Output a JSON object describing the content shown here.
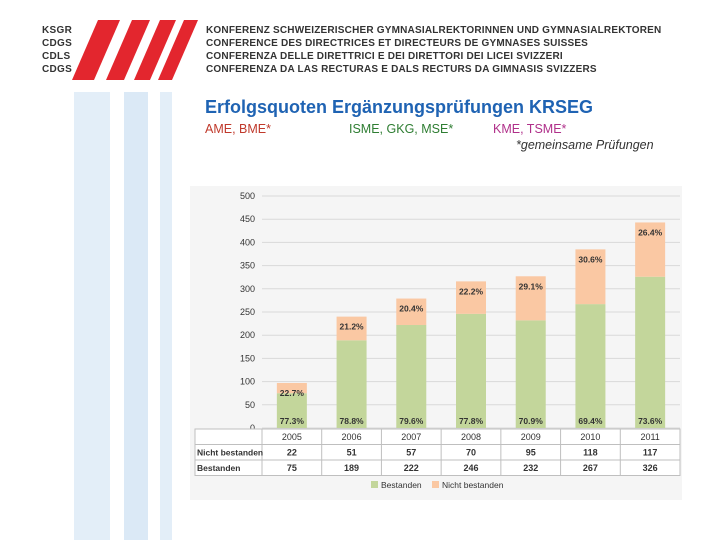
{
  "header": {
    "org_codes": [
      "KSGR",
      "CDGS",
      "CDLS",
      "CDGS"
    ],
    "org_names": [
      "KONFERENZ SCHWEIZERISCHER GYMNASIALREKTORINNEN UND GYMNASIALREKTOREN",
      "CONFERENCE DES DIRECTRICES ET DIRECTEURS DE GYMNASES SUISSES",
      "CONFERENZA DELLE DIRETTRICI E DEI DIRETTORI DEI LICEI SVIZZERI",
      "CONFERENZA DA LAS RECTURAS E DALS RECTURS DA GIMNASIS SVIZZERS"
    ]
  },
  "slide": {
    "title": "Erfolgsquoten Ergänzungsprüfungen KRSEG",
    "groups": [
      "AME, BME*",
      "ISME, GKG, MSE*",
      "KME, TSME*"
    ],
    "note": "*gemeinsame Prüfungen"
  },
  "colors": {
    "passed": "#c3d69b",
    "failed": "#fac8a3",
    "title": "#1f63b3",
    "logo": "#e3262e"
  },
  "chart_data": {
    "type": "bar",
    "stacked": true,
    "categories": [
      "2005",
      "2006",
      "2007",
      "2008",
      "2009",
      "2010",
      "2011"
    ],
    "series": [
      {
        "name": "Bestanden",
        "values": [
          75,
          189,
          222,
          246,
          232,
          267,
          326
        ],
        "labels": [
          "77.3%",
          "78.8%",
          "79.6%",
          "77.8%",
          "70.9%",
          "69.4%",
          "73.6%"
        ]
      },
      {
        "name": "Nicht bestanden",
        "values": [
          22,
          51,
          57,
          70,
          95,
          118,
          117
        ],
        "labels": [
          "22.7%",
          "21.2%",
          "20.4%",
          "22.2%",
          "29.1%",
          "30.6%",
          "26.4%"
        ]
      }
    ],
    "ylim": [
      0,
      500
    ],
    "yticks": [
      "0",
      "50",
      "100",
      "150",
      "200",
      "250",
      "300",
      "350",
      "400",
      "450",
      "500"
    ],
    "table_rows": [
      {
        "label": "Nicht bestanden",
        "values": [
          "22",
          "51",
          "57",
          "70",
          "95",
          "118",
          "117"
        ]
      },
      {
        "label": "Bestanden",
        "values": [
          "75",
          "189",
          "222",
          "246",
          "232",
          "267",
          "326"
        ]
      }
    ],
    "legend": [
      "Bestanden",
      "Nicht bestanden"
    ],
    "legend_position": "bottom",
    "grid": true
  }
}
